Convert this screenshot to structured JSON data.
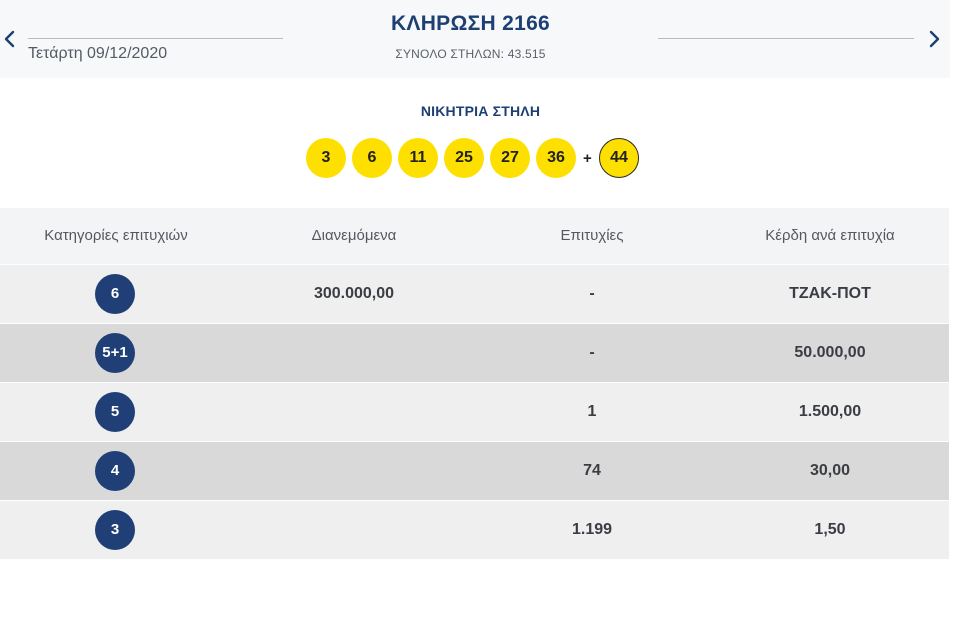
{
  "header": {
    "date": "Τετάρτη 09/12/2020",
    "title": "ΚΛΗΡΩΣΗ 2166",
    "columns_total": "ΣΥΝΟΛΟ ΣΤΗΛΩΝ: 43.515",
    "prev_icon": "chevron-left-icon",
    "next_icon": "chevron-right-icon"
  },
  "winning": {
    "label": "ΝΙΚΗΤΡΙΑ ΣΤΗΛΗ",
    "numbers": [
      "3",
      "6",
      "11",
      "25",
      "27",
      "36"
    ],
    "plus": "+",
    "joker": "44",
    "ball_color": "#fde000"
  },
  "table": {
    "headers": [
      "Κατηγορίες επιτυχιών",
      "Διανεμόμενα",
      "Επιτυχίες",
      "Κέρδη ανά επιτυχία"
    ],
    "rows": [
      {
        "category": "6",
        "distributed": "300.000,00",
        "winners": "-",
        "prize": "ΤΖΑΚ-ΠΟΤ"
      },
      {
        "category": "5+1",
        "distributed": "",
        "winners": "-",
        "prize": "50.000,00"
      },
      {
        "category": "5",
        "distributed": "",
        "winners": "1",
        "prize": "1.500,00"
      },
      {
        "category": "4",
        "distributed": "",
        "winners": "74",
        "prize": "30,00"
      },
      {
        "category": "3",
        "distributed": "",
        "winners": "1.199",
        "prize": "1,50"
      }
    ],
    "badge_color": "#1f3f76"
  }
}
